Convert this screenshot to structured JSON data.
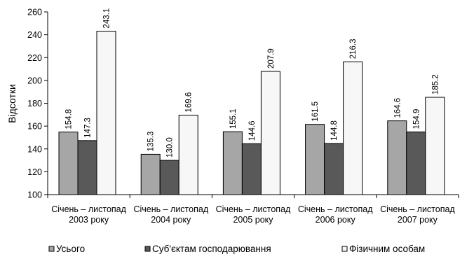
{
  "chart_data": {
    "type": "bar",
    "title": "",
    "xlabel": "",
    "ylabel": "Відсотки",
    "ylim": [
      100,
      260
    ],
    "yticks": [
      100,
      120,
      140,
      160,
      180,
      200,
      220,
      240,
      260
    ],
    "grid": false,
    "legend_position": "bottom",
    "categories": [
      [
        "Січень – листопад",
        "2003 року"
      ],
      [
        "Січень – листопад",
        "2004 року"
      ],
      [
        "Січень – листопад",
        "2005 року"
      ],
      [
        "Січень – листопад",
        "2006 року"
      ],
      [
        "Січень – листопад",
        "2007 року"
      ]
    ],
    "series": [
      {
        "name": "Усього",
        "color": "#a6a6a6",
        "values": [
          154.8,
          135.3,
          155.1,
          161.5,
          164.6
        ],
        "labels": [
          "154.8",
          "135.3",
          "155.1",
          "161.5",
          "164.6"
        ]
      },
      {
        "name": "Суб'єктам господарювання",
        "color": "#595959",
        "values": [
          147.3,
          130.0,
          144.6,
          144.8,
          154.9
        ],
        "labels": [
          "147.3",
          "130.0",
          "144.6",
          "144.8",
          "154.9"
        ]
      },
      {
        "name": "Фізичним особам",
        "color": "#f7f7f7",
        "values": [
          243.1,
          169.6,
          207.9,
          216.3,
          185.2
        ],
        "labels": [
          "243.1",
          "169.6",
          "207.9",
          "216.3",
          "185.2"
        ]
      }
    ]
  }
}
